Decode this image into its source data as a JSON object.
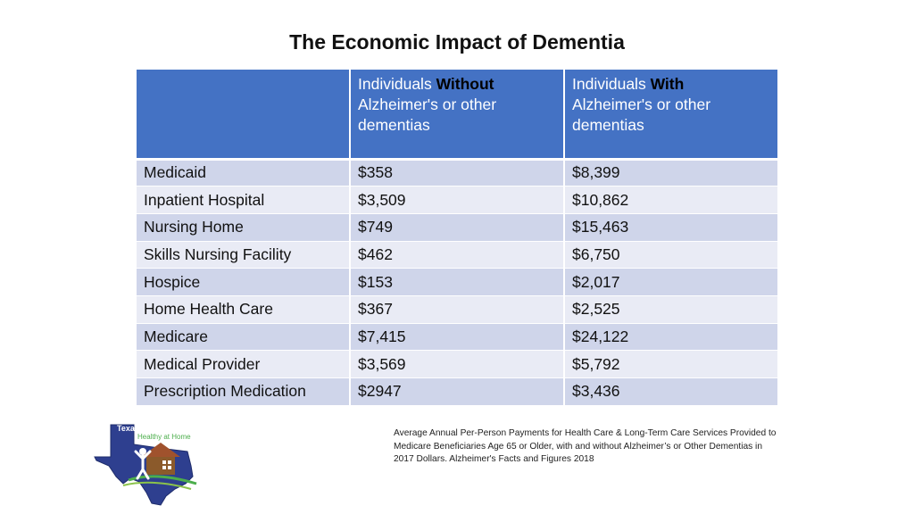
{
  "slide": {
    "title": "The Economic Impact of Dementia"
  },
  "table": {
    "header": {
      "col1": "",
      "col2": {
        "prefix": "Individuals ",
        "emphasis": "Without",
        "suffix": "Alzheimer's or other dementias"
      },
      "col3": {
        "prefix": "Individuals ",
        "emphasis": "With",
        "suffix": "Alzheimer's or other dementias"
      }
    },
    "rows": [
      {
        "label": "Medicaid",
        "without": "$358",
        "with": "$8,399"
      },
      {
        "label": "Inpatient Hospital",
        "without": "$3,509",
        "with": "$10,862"
      },
      {
        "label": "Nursing Home",
        "without": "$749",
        "with": "$15,463"
      },
      {
        "label": "Skills Nursing Facility",
        "without": "$462",
        "with": "$6,750"
      },
      {
        "label": "Hospice",
        "without": "$153",
        "with": "$2,017"
      },
      {
        "label": "Home Health Care",
        "without": "$367",
        "with": "$2,525"
      },
      {
        "label": "Medicare",
        "without": "$7,415",
        "with": "$24,122"
      },
      {
        "label": "Medical Provider",
        "without": "$3,569",
        "with": "$5,792"
      },
      {
        "label": "Prescription Medication",
        "without": "$2947",
        "with": "$3,436"
      }
    ]
  },
  "logo": {
    "icon": "texas-map-house-person-icon",
    "texas_text": "Texas",
    "brand_text": "Healthy at Home"
  },
  "footnote": {
    "text": "Average Annual Per-Person Payments for Health Care & Long-Term Care Services Provided to Medicare Beneficiaries Age 65 or Older, with and without Alzheimer’s or Other Dementias in  2017 Dollars.  Alzheimer's Facts and Figures 2018"
  },
  "colors": {
    "header_blue": "#4472c4",
    "row_dark": "#cfd5ea",
    "row_light": "#e9ebf5"
  }
}
